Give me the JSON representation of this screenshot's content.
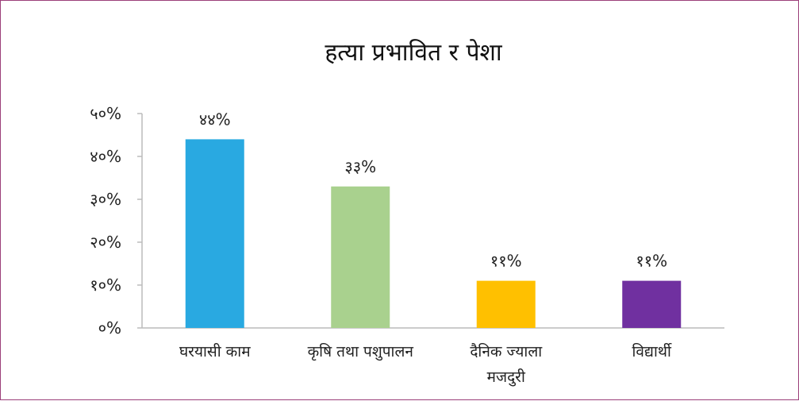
{
  "chart_data": {
    "type": "bar",
    "title": "हत्या प्रभावित र पेशा",
    "categories": [
      [
        "घरयासी काम"
      ],
      [
        "कृषि तथा पशुपालन"
      ],
      [
        "दैनिक ज्याला",
        "मजदुरी"
      ],
      [
        "विद्यार्थी"
      ]
    ],
    "values": [
      44,
      33,
      11,
      11
    ],
    "data_labels": [
      "४४%",
      "३३%",
      "११%",
      "११%"
    ],
    "colors": [
      "#29a9e1",
      "#a9d18e",
      "#ffc000",
      "#7030a0"
    ],
    "ylim": [
      0,
      50
    ],
    "yticks": [
      {
        "value": 0,
        "label": "०%"
      },
      {
        "value": 10,
        "label": "१०%"
      },
      {
        "value": 20,
        "label": "२०%"
      },
      {
        "value": 30,
        "label": "३०%"
      },
      {
        "value": 40,
        "label": "४०%"
      },
      {
        "value": 50,
        "label": "५०%"
      }
    ],
    "grid": false,
    "legend": "none"
  }
}
